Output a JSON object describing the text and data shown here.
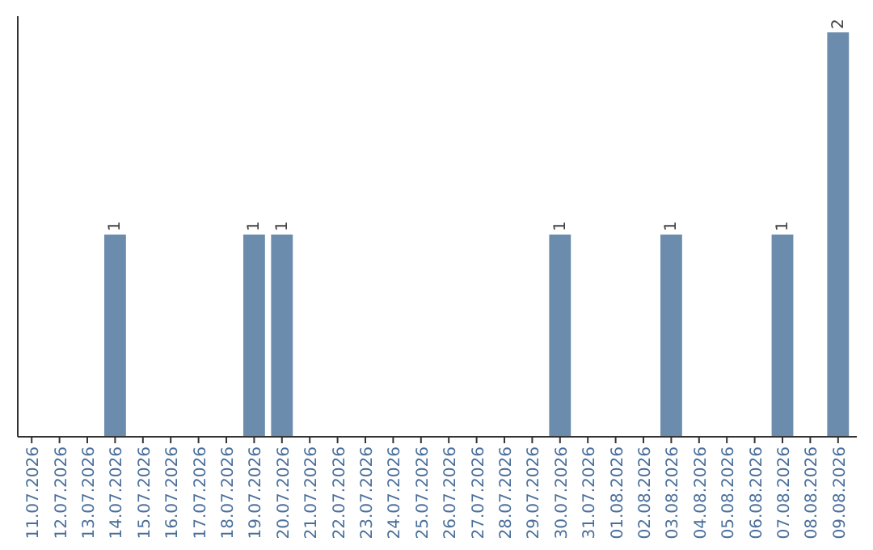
{
  "chart_data": {
    "type": "bar",
    "categories": [
      "11.07.2026",
      "12.07.2026",
      "13.07.2026",
      "14.07.2026",
      "15.07.2026",
      "16.07.2026",
      "17.07.2026",
      "18.07.2026",
      "19.07.2026",
      "20.07.2026",
      "21.07.2026",
      "22.07.2026",
      "23.07.2026",
      "24.07.2026",
      "25.07.2026",
      "26.07.2026",
      "27.07.2026",
      "28.07.2026",
      "29.07.2026",
      "30.07.2026",
      "31.07.2026",
      "01.08.2026",
      "02.08.2026",
      "03.08.2026",
      "04.08.2026",
      "05.08.2026",
      "06.08.2026",
      "07.08.2026",
      "08.08.2026",
      "09.08.2026"
    ],
    "values": [
      0,
      0,
      0,
      1,
      0,
      0,
      0,
      0,
      1,
      1,
      0,
      0,
      0,
      0,
      0,
      0,
      0,
      0,
      0,
      1,
      0,
      0,
      0,
      1,
      0,
      0,
      0,
      1,
      0,
      2
    ],
    "value_labels": [
      null,
      null,
      null,
      "1",
      null,
      null,
      null,
      null,
      "1",
      "1",
      null,
      null,
      null,
      null,
      null,
      null,
      null,
      null,
      null,
      "1",
      null,
      null,
      null,
      "1",
      null,
      null,
      null,
      "1",
      null,
      "2"
    ],
    "color": "#6b8cad",
    "ylim": [
      0,
      2
    ],
    "tick_labels": "x"
  }
}
